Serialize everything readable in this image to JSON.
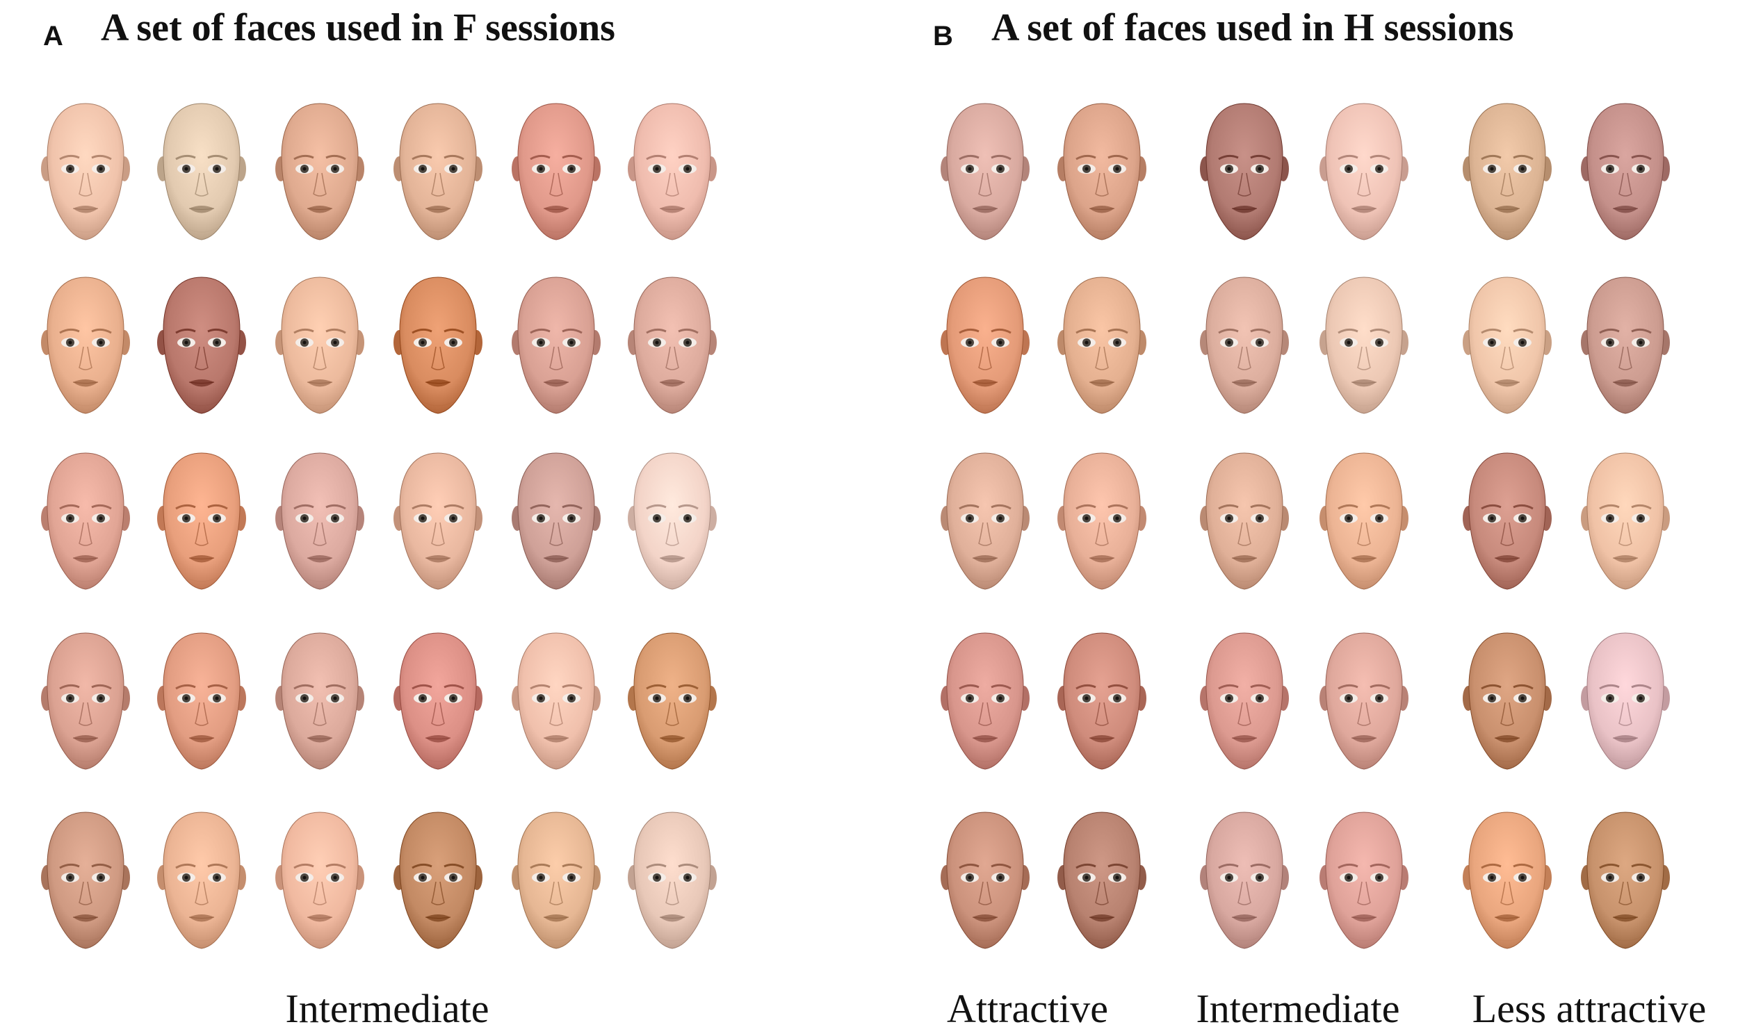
{
  "panel_a": {
    "letter": "A",
    "title": "A set of faces used in F sessions",
    "category_label": "Intermediate",
    "rows": [
      [
        "#f0c3ab",
        "#e2cab0",
        "#dfaa8f",
        "#e3b498",
        "#e0998a",
        "#efbcae"
      ],
      [
        "#e9b08e",
        "#b9786c",
        "#ecba9d",
        "#d98c60",
        "#d9a194",
        "#ddab9d"
      ],
      [
        "#e1a595",
        "#e89f7c",
        "#dcaaa0",
        "#e9b8a0",
        "#cfa198",
        "#f3d4c8"
      ],
      [
        "#dba292",
        "#e29d82",
        "#dcaa9c",
        "#dc9086",
        "#f0c0ac",
        "#d99c72"
      ],
      [
        "#cf9a82",
        "#ebb494",
        "#f0b9a0",
        "#c38a64",
        "#e6b794",
        "#e8c8b8"
      ]
    ]
  },
  "panel_b": {
    "letter": "B",
    "title": "A set of faces used in H sessions",
    "category_labels": [
      "Attractive",
      "Intermediate",
      "Less attractive"
    ],
    "rows": [
      [
        "#d9aaa0",
        "#dca48a",
        "#b27b72",
        "#efc3b6",
        "#dcb494",
        "#c4908a"
      ],
      [
        "#e49b78",
        "#e4b090",
        "#dcae9e",
        "#ecc8b4",
        "#f0c6aa",
        "#cc9c90"
      ],
      [
        "#e0b09a",
        "#e8b098",
        "#e0b098",
        "#ecb494",
        "#c78a7c",
        "#f0c2a6"
      ],
      [
        "#d8968c",
        "#cf8c7c",
        "#dc9a90",
        "#dfa89c",
        "#c9906e",
        "#e9c2c6"
      ],
      [
        "#cb927c",
        "#b88270",
        "#d8a8a0",
        "#dfa299",
        "#e9a67e",
        "#c7926c"
      ]
    ]
  }
}
